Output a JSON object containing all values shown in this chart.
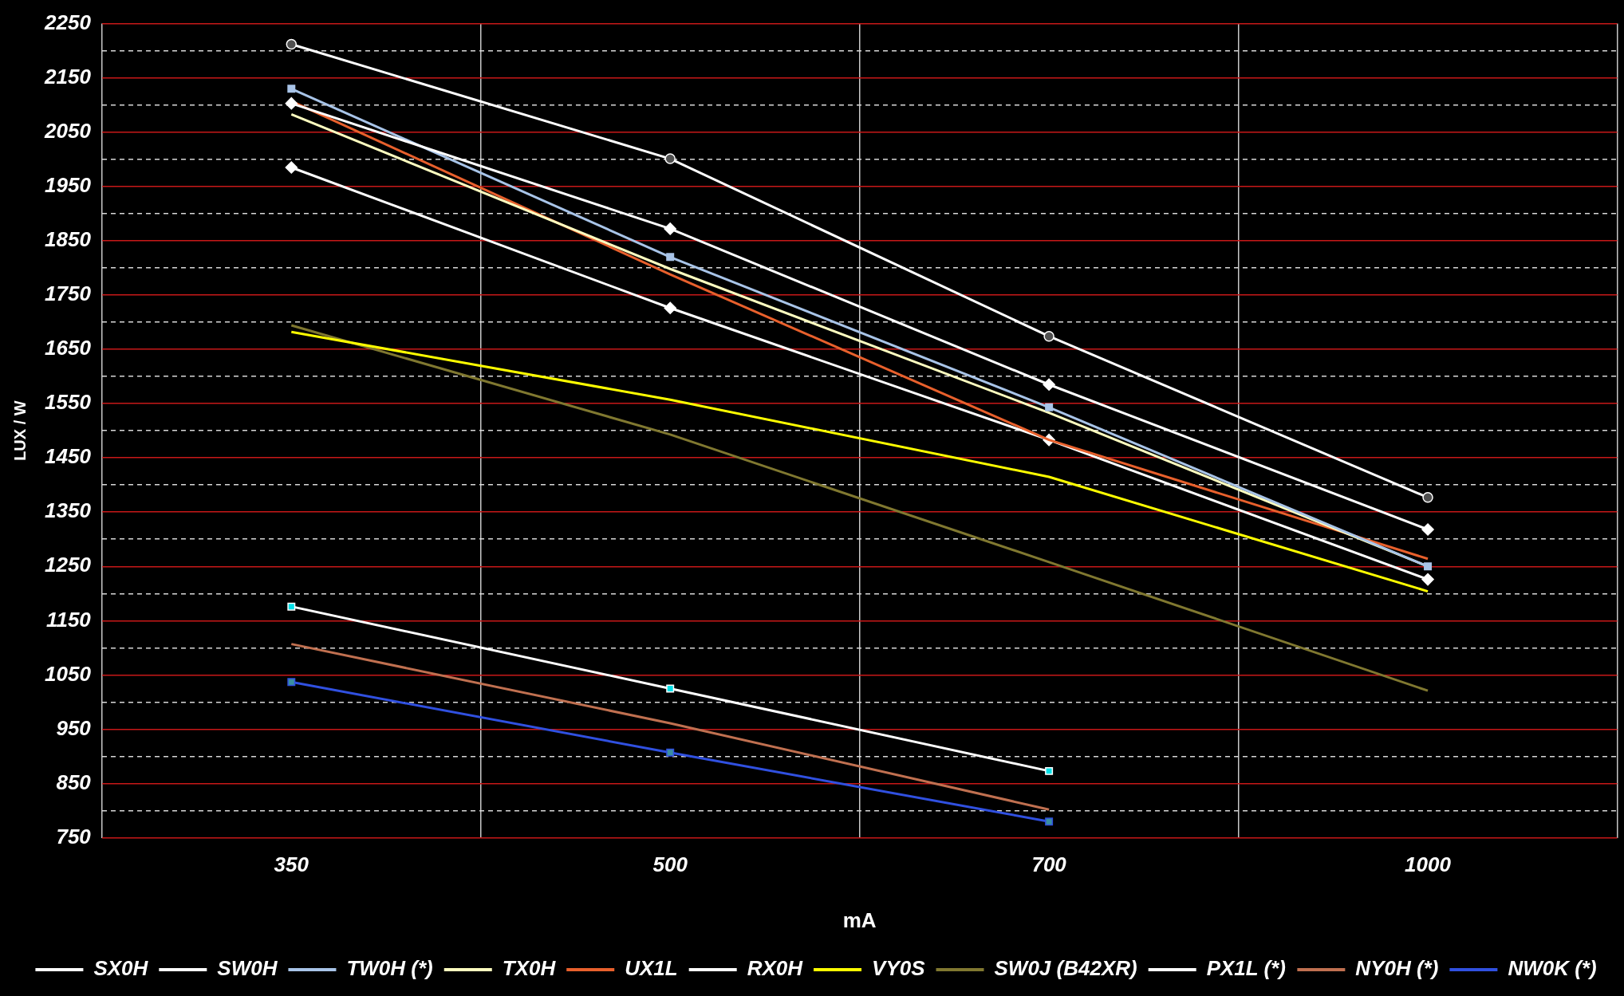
{
  "chart_data": {
    "type": "line",
    "xlabel": "mA",
    "ylabel": "LUX / W",
    "categories": [
      "350",
      "500",
      "700",
      "1000"
    ],
    "ylim": [
      750,
      2250
    ],
    "yticks": [
      750,
      {
        "value": 800,
        "label": null
      },
      850,
      {
        "value": 900,
        "label": null
      },
      950,
      {
        "value": 1000,
        "label": null
      },
      1050,
      {
        "value": 1100,
        "label": null
      },
      1150,
      {
        "value": 1200,
        "label": null
      },
      1250,
      {
        "value": 1300,
        "label": null
      },
      1350,
      {
        "value": 1400,
        "label": null
      },
      1450,
      {
        "value": 1500,
        "label": null
      },
      1550,
      {
        "value": 1600,
        "label": null
      },
      1650,
      {
        "value": 1700,
        "label": null
      },
      1750,
      {
        "value": 1800,
        "label": null
      },
      1850,
      {
        "value": 1900,
        "label": null
      },
      1950,
      {
        "value": 2000,
        "label": null
      },
      2050,
      {
        "value": 2100,
        "label": null
      },
      2150,
      {
        "value": 2200,
        "label": null
      },
      2250
    ],
    "grid": true,
    "legend": "bottom",
    "line_style": "solid",
    "series": [
      {
        "name": "SX0H",
        "color": "#ffffff",
        "marker": "circle",
        "colors": [
          "#505050",
          "#505050",
          "#505050",
          "#505050"
        ],
        "values": [
          2212,
          2001,
          1674,
          1377
        ]
      },
      {
        "name": "SW0H",
        "color": "#ffffff",
        "marker": "diamond",
        "values": [
          2103,
          1872,
          1585,
          1318
        ]
      },
      {
        "name": "TW0H (*)",
        "color": "#a8c4e8",
        "marker": "square",
        "values": [
          2130,
          1820,
          1543,
          1250
        ]
      },
      {
        "name": "TX0H",
        "color": "#ffffc0",
        "marker": "none",
        "values": [
          2083,
          1798,
          1533,
          1250
        ]
      },
      {
        "name": "UX1L",
        "color": "#e8602c",
        "marker": "none",
        "values": [
          2107,
          1788,
          1483,
          1264
        ]
      },
      {
        "name": "RX0H",
        "color": "#ffffff",
        "marker": "diamond",
        "values": [
          1985,
          1726,
          1483,
          1226
        ]
      },
      {
        "name": "VY0S",
        "color": "#ffff00",
        "marker": "none",
        "values": [
          1682,
          1557,
          1415,
          1204
        ]
      },
      {
        "name": "SW0J (B42XR)",
        "color": "#807830",
        "marker": "none",
        "values": [
          1694,
          1493,
          1258,
          1021
        ]
      },
      {
        "name": "PX1L (*)",
        "color": "#ffffff",
        "marker": "square",
        "colors": [
          "#00e0e8",
          "#00e0e8",
          "#00e0e8",
          "#00e0e8"
        ],
        "values": [
          1176,
          1025,
          873,
          null
        ]
      },
      {
        "name": "NY0H (*)",
        "color": "#c07050",
        "marker": "none",
        "values": [
          1107,
          961,
          802,
          null
        ]
      },
      {
        "name": "NW0K (*)",
        "color": "#3050e0",
        "marker": "square",
        "colors": [
          "#3a8fa0",
          "#3a8fa0",
          "#3a8fa0",
          "#3a8fa0"
        ],
        "values": [
          1037,
          907,
          780,
          null
        ]
      }
    ]
  }
}
